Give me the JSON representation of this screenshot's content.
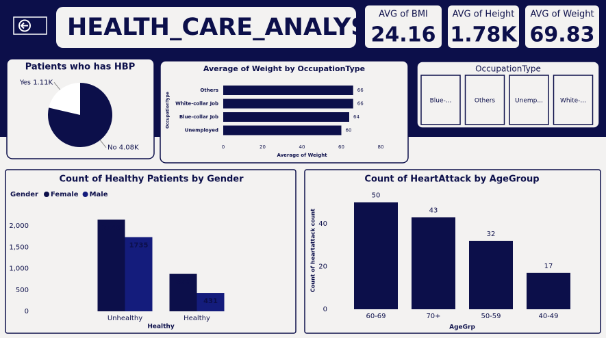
{
  "header": {
    "title": "HEALTH_CARE_ANALYSIS"
  },
  "kpis": [
    {
      "label": "AVG of BMI",
      "value": "24.16"
    },
    {
      "label": "AVG of Height",
      "value": "1.78K"
    },
    {
      "label": "AVG of Weight",
      "value": "69.83"
    }
  ],
  "slicer": {
    "title": "OccupationType",
    "items": [
      "Blue-...",
      "Others",
      "Unemp...",
      "White-..."
    ]
  },
  "chart_data": [
    {
      "type": "pie",
      "title": "Patients who has HBP",
      "categories": [
        "Yes",
        "No"
      ],
      "values": [
        1110,
        4080
      ],
      "value_labels": [
        "1.11K",
        "4.08K"
      ],
      "colors": [
        "#ffffff",
        "#0c0f4a"
      ]
    },
    {
      "type": "bar",
      "orientation": "horizontal",
      "title": "Average of Weight by OccupationType",
      "categories": [
        "Others",
        "White-collar Job",
        "Blue-collar Job",
        "Unemployed"
      ],
      "values": [
        66,
        66,
        64,
        60
      ],
      "color": "#0c0f4a",
      "xlim": [
        0,
        80
      ],
      "xticks": [
        0,
        20,
        40,
        60,
        80
      ],
      "x_label": "Average of Weight",
      "y_label": "OccupationType"
    },
    {
      "type": "bar",
      "title": "Count of Healthy Patients by Gender",
      "legend_title": "Gender",
      "categories": [
        "Unhealthy",
        "Healthy"
      ],
      "series": [
        {
          "name": "Female",
          "color": "#0c0f4a",
          "values": [
            2146,
            879
          ]
        },
        {
          "name": "Male",
          "color": "#141c7c",
          "values": [
            1735,
            431
          ]
        }
      ],
      "ylim": [
        0,
        2400
      ],
      "yticks": [
        0,
        500,
        {
          "value": 1000,
          "label": "1,000"
        },
        {
          "value": 1500,
          "label": "1,500"
        },
        {
          "value": 2000,
          "label": "2,000"
        }
      ],
      "x_label": "Healthy"
    },
    {
      "type": "bar",
      "title": "Count of HeartAttack by AgeGroup",
      "categories": [
        "60-69",
        "70+",
        "50-59",
        "40-49"
      ],
      "values": [
        50,
        43,
        32,
        17
      ],
      "color": "#0c0f4a",
      "ylim": [
        0,
        55
      ],
      "yticks": [
        0,
        20,
        40
      ],
      "x_label": "AgeGrp",
      "y_label": "Count of heartattack count"
    }
  ]
}
